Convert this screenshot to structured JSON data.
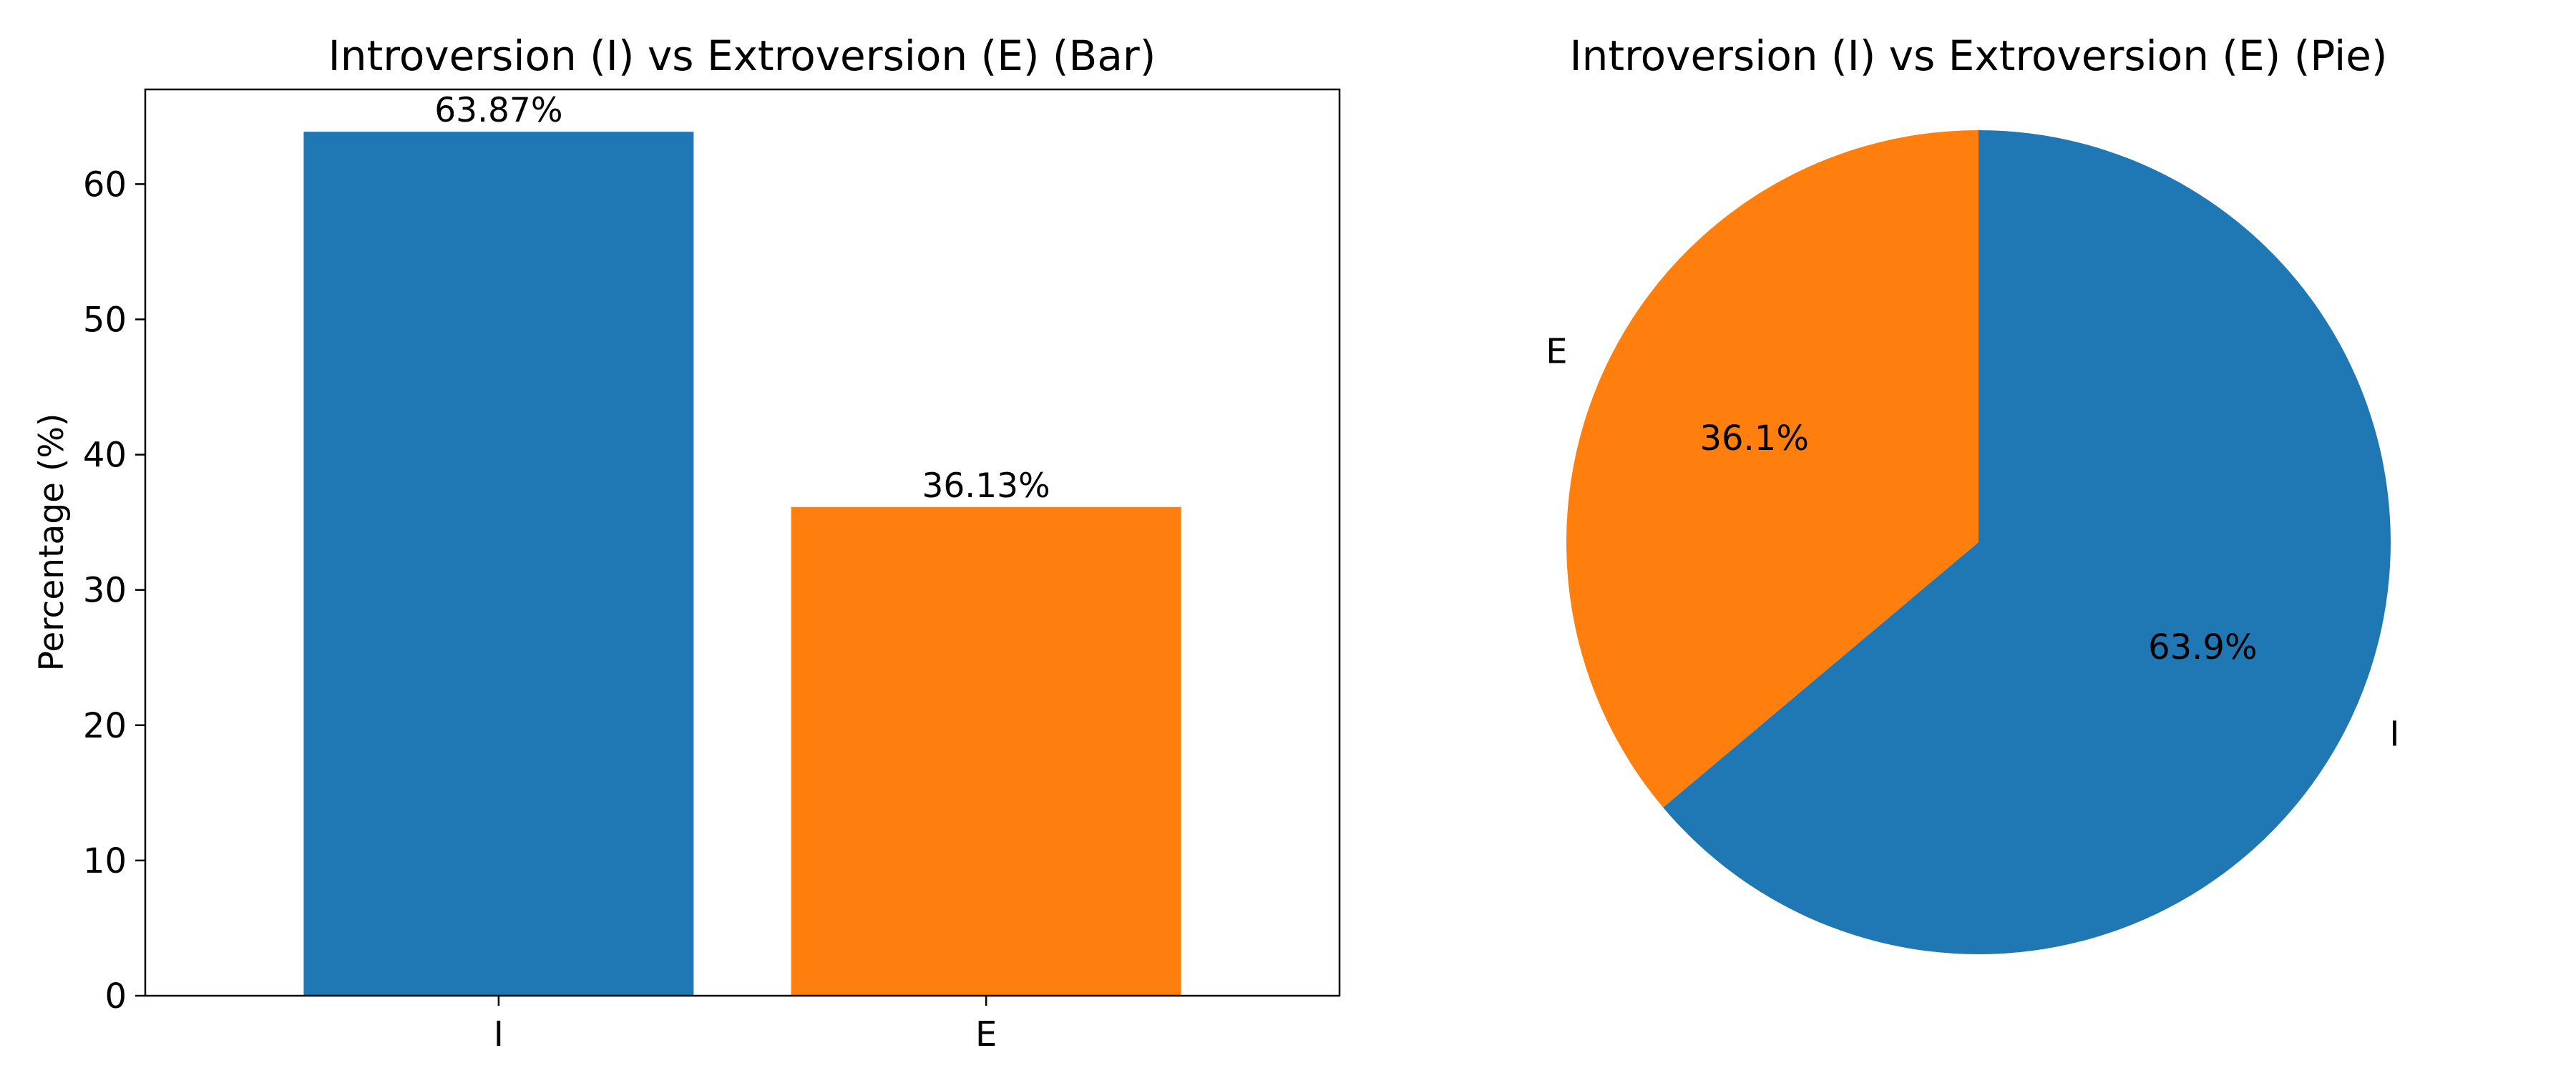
{
  "chart_data": [
    {
      "type": "bar",
      "title": "Introversion (I) vs Extroversion (E) (Bar)",
      "xlabel": "",
      "ylabel": "Percentage (%)",
      "categories": [
        "I",
        "E"
      ],
      "values": [
        63.87,
        36.13
      ],
      "value_labels": [
        "63.87%",
        "36.13%"
      ],
      "colors": [
        "#1f77b4",
        "#ff7f0e"
      ],
      "ylim": [
        0,
        67
      ],
      "yticks": [
        0,
        10,
        20,
        30,
        40,
        50,
        60
      ],
      "grid": false
    },
    {
      "type": "pie",
      "title": "Introversion (I) vs Extroversion (E) (Pie)",
      "labels": [
        "I",
        "E"
      ],
      "values": [
        63.87,
        36.13
      ],
      "pct_labels": [
        "63.9%",
        "36.1%"
      ],
      "colors": [
        "#1f77b4",
        "#ff7f0e"
      ],
      "start_angle_deg": 90,
      "direction": "clockwise"
    }
  ]
}
